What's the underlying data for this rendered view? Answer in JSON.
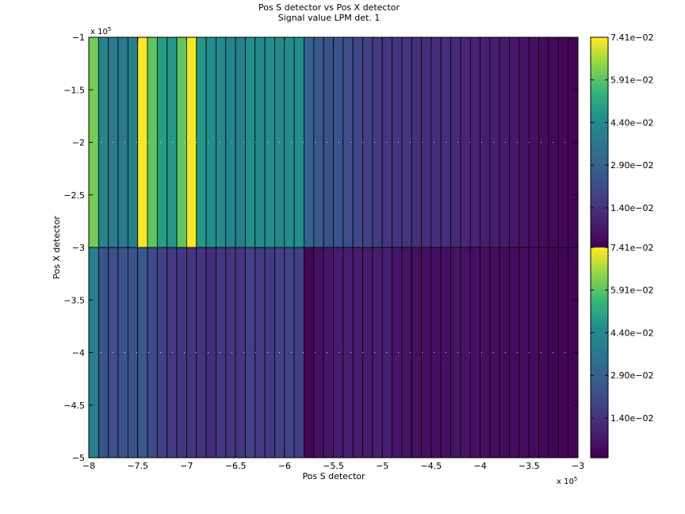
{
  "chart_data": {
    "type": "heatmap",
    "title": "Pos S detector vs Pos X detector",
    "subtitle": "Signal value LPM det. 1",
    "xlabel": "Pos S detector",
    "ylabel": "Pos X detector",
    "x_multiplier": "x 10",
    "x_multiplier_exp": "5",
    "y_multiplier": "x 10",
    "y_multiplier_exp": "5",
    "xlim": [
      -8,
      -3
    ],
    "ylim": [
      -5,
      -1
    ],
    "x_ticks": [
      -8,
      -7.5,
      -7,
      -6.5,
      -6,
      -5.5,
      -5,
      -4.5,
      -4,
      -3.5,
      -3
    ],
    "x_tick_labels": [
      "−8",
      "−7.5",
      "−7",
      "−6.5",
      "−6",
      "−5.5",
      "−5",
      "−4.5",
      "−4",
      "−3.5",
      "−3"
    ],
    "y_ticks": [
      -1,
      -1.5,
      -2,
      -2.5,
      -3,
      -3.5,
      -4,
      -4.5,
      -5
    ],
    "y_tick_labels": [
      "−1",
      "−1.5",
      "−2",
      "−2.5",
      "−3",
      "−3.5",
      "−4",
      "−4.5",
      "−5"
    ],
    "rows": [
      {
        "y_range": [
          -3,
          -1
        ],
        "values": [
          0.062,
          0.042,
          0.038,
          0.038,
          0.04,
          0.074,
          0.06,
          0.05,
          0.048,
          0.06,
          0.074,
          0.048,
          0.046,
          0.044,
          0.042,
          0.04,
          0.046,
          0.044,
          0.046,
          0.044,
          0.046,
          0.046,
          0.029,
          0.026,
          0.024,
          0.024,
          0.022,
          0.02,
          0.018,
          0.016,
          0.015,
          0.014,
          0.014,
          0.013,
          0.012,
          0.012,
          0.012,
          0.011,
          0.01,
          0.009,
          0.008,
          0.008,
          0.007,
          0.006,
          0.005,
          0.004,
          0.003,
          0.002,
          0.002,
          0.001
        ]
      },
      {
        "y_range": [
          -5,
          -3
        ],
        "values": [
          0.04,
          0.024,
          0.022,
          0.024,
          0.024,
          0.026,
          0.02,
          0.018,
          0.016,
          0.015,
          0.014,
          0.014,
          0.012,
          0.015,
          0.014,
          0.015,
          0.018,
          0.016,
          0.016,
          0.018,
          0.018,
          0.018,
          0.001,
          0.004,
          0.006,
          0.007,
          0.008,
          0.007,
          0.007,
          0.008,
          0.008,
          0.006,
          0.005,
          0.004,
          0.004,
          0.004,
          0.004,
          0.005,
          0.005,
          0.004,
          0.004,
          0.003,
          0.003,
          0.003,
          0.003,
          0.003,
          0.002,
          0.001,
          0.001,
          0.001
        ]
      }
    ],
    "colorbar": {
      "colormap": "viridis",
      "upper_range": [
        0.0,
        0.0741
      ],
      "lower_range": [
        0.0,
        0.0741
      ],
      "tick_labels": [
        "7.41e−02",
        "5.91e−02",
        "4.40e−02",
        "2.90e−02",
        "1.40e−02",
        "7.41e−02",
        "5.91e−02",
        "4.40e−02",
        "2.90e−02",
        "1.40e−02"
      ]
    },
    "grid": "dotted",
    "legend": "none"
  }
}
